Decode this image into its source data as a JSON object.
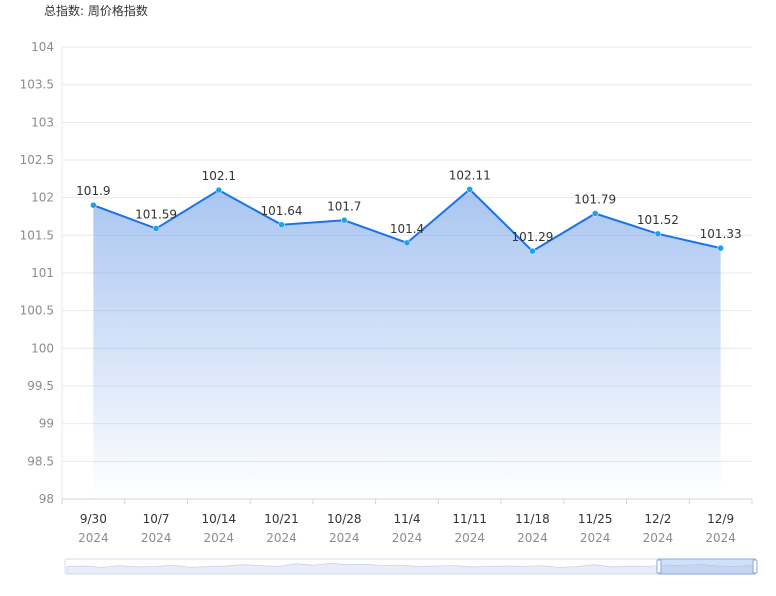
{
  "title": "总指数: 周价格指数",
  "chart_data": {
    "type": "area",
    "categories": [
      "9/30",
      "10/7",
      "10/14",
      "10/21",
      "10/28",
      "11/4",
      "11/11",
      "11/18",
      "11/25",
      "12/2",
      "12/9"
    ],
    "category_year": "2024",
    "series": [
      {
        "values": [
          101.9,
          101.59,
          102.1,
          101.64,
          101.7,
          101.4,
          102.11,
          101.29,
          101.79,
          101.52,
          101.33
        ]
      }
    ],
    "data_labels": [
      "101.9",
      "101.59",
      "102.1",
      "101.64",
      "101.7",
      "101.4",
      "102.11",
      "101.29",
      "101.79",
      "101.52",
      "101.33"
    ],
    "ylim": [
      98,
      104
    ],
    "yticks": [
      "98",
      "98.5",
      "99",
      "99.5",
      "100",
      "100.5",
      "101",
      "101.5",
      "102",
      "102.5",
      "103",
      "103.5",
      "104"
    ],
    "grid": true,
    "line_color": "#1a73e8",
    "point_color": "#1aa3e8",
    "fill_color": "#7aa6ea",
    "has_zoom_slider": true
  }
}
